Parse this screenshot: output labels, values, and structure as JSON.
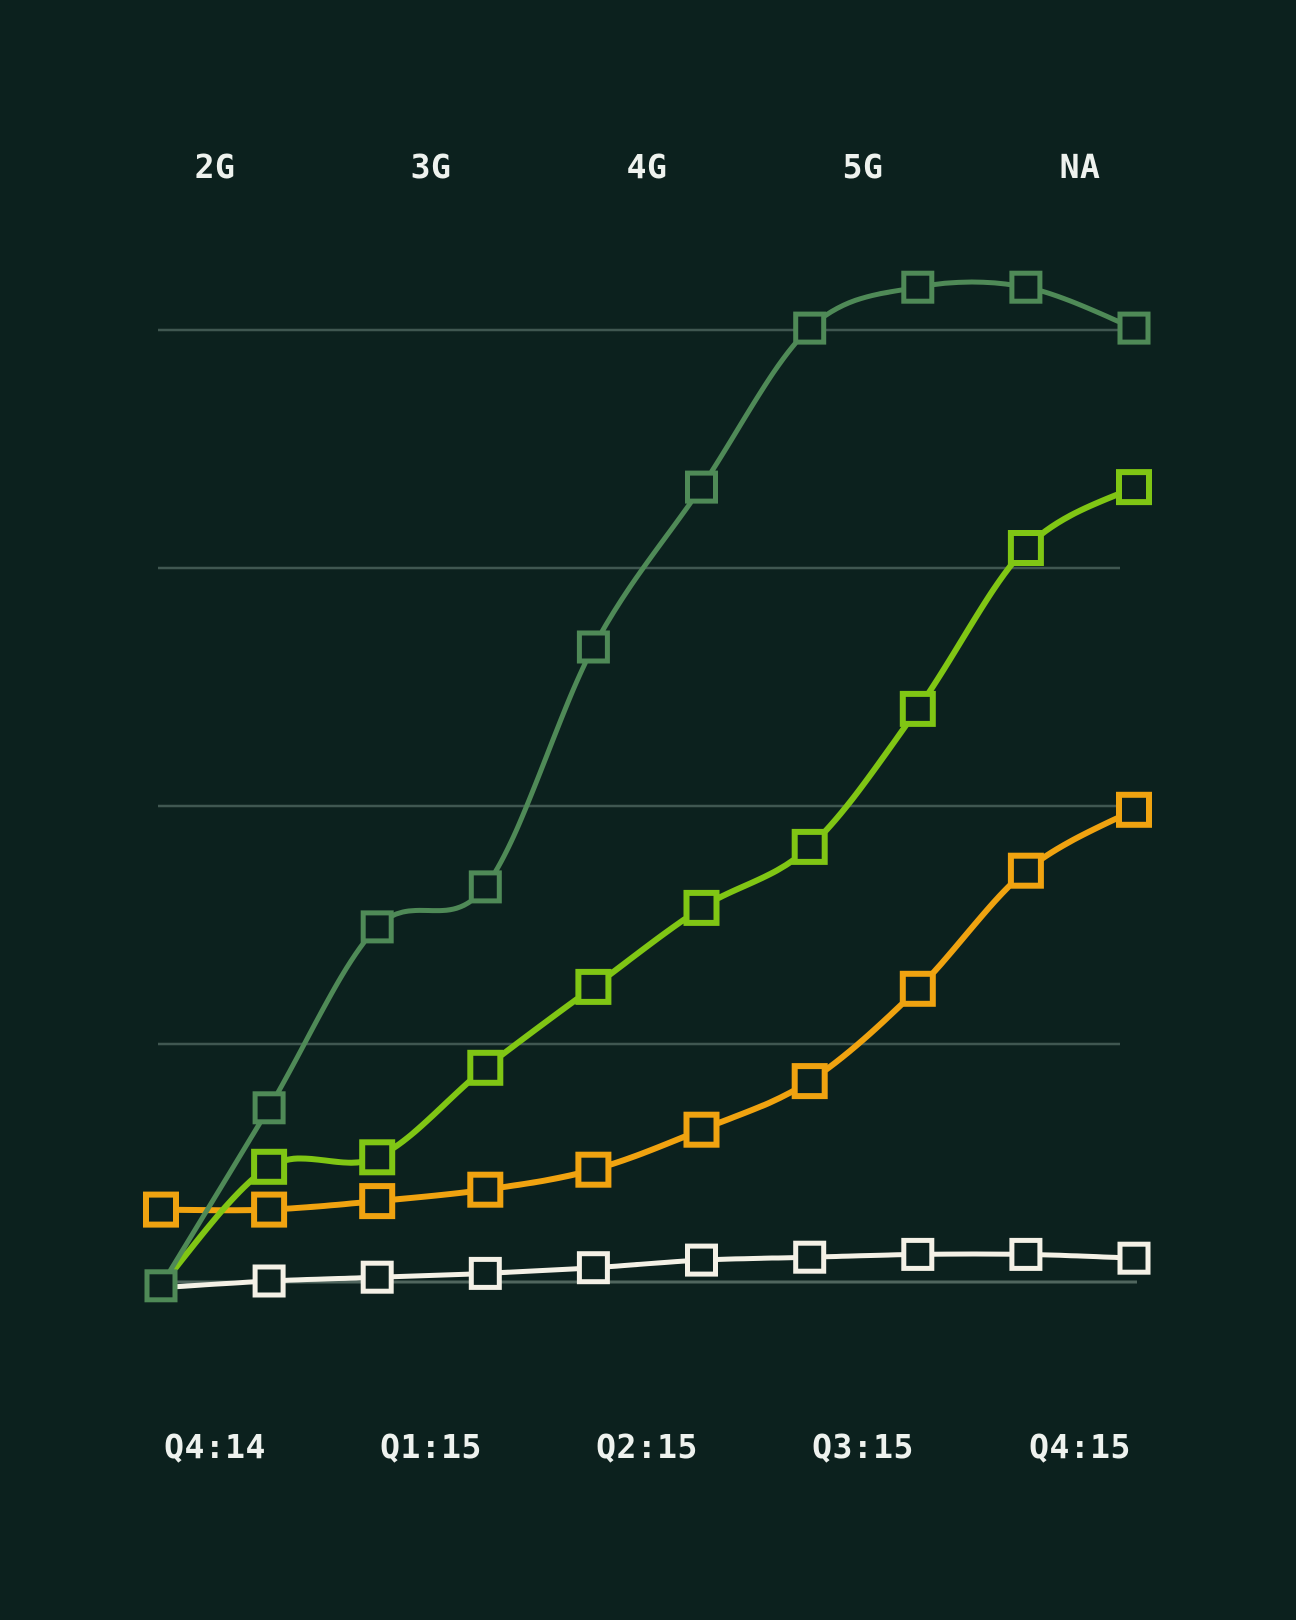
{
  "chart_data": {
    "type": "line",
    "title": "",
    "top_axis_labels": [
      "2G",
      "3G",
      "4G",
      "5G",
      "NA"
    ],
    "x_tick_labels": [
      "Q4:14",
      "Q1:15",
      "Q2:15",
      "Q3:15",
      "Q4:15"
    ],
    "x_points": [
      1,
      2,
      3,
      4,
      5,
      6,
      7,
      8,
      9,
      10
    ],
    "ylabel": "",
    "xlabel": "",
    "ylim": [
      0,
      107
    ],
    "gridline_values": [
      0,
      25,
      50,
      75,
      100
    ],
    "grid": "horizontal",
    "legend_position": "none",
    "series": [
      {
        "name": "dark-green-line",
        "color": "#4f8a57",
        "values": [
          -0.4,
          18.3,
          37.3,
          41.5,
          66.7,
          83.5,
          100.2,
          104.5,
          104.5,
          100.2
        ]
      },
      {
        "name": "bright-green-line",
        "color": "#80c614",
        "values": [
          -0.4,
          12.1,
          13.1,
          22.5,
          31.0,
          39.3,
          45.7,
          60.2,
          77.1,
          83.5
        ]
      },
      {
        "name": "orange-line",
        "color": "#f0a310",
        "values": [
          7.6,
          7.6,
          8.5,
          9.7,
          11.8,
          16.0,
          21.1,
          30.8,
          43.2,
          49.6
        ]
      },
      {
        "name": "white-line",
        "color": "#f4f1e6",
        "values": [
          -0.6,
          0.1,
          0.5,
          0.9,
          1.5,
          2.3,
          2.6,
          2.9,
          2.9,
          2.5
        ]
      }
    ]
  },
  "colors": {
    "background": "#0c211e",
    "grid": "#405751",
    "baseline": "#50665e",
    "label": "#eef2ee"
  }
}
